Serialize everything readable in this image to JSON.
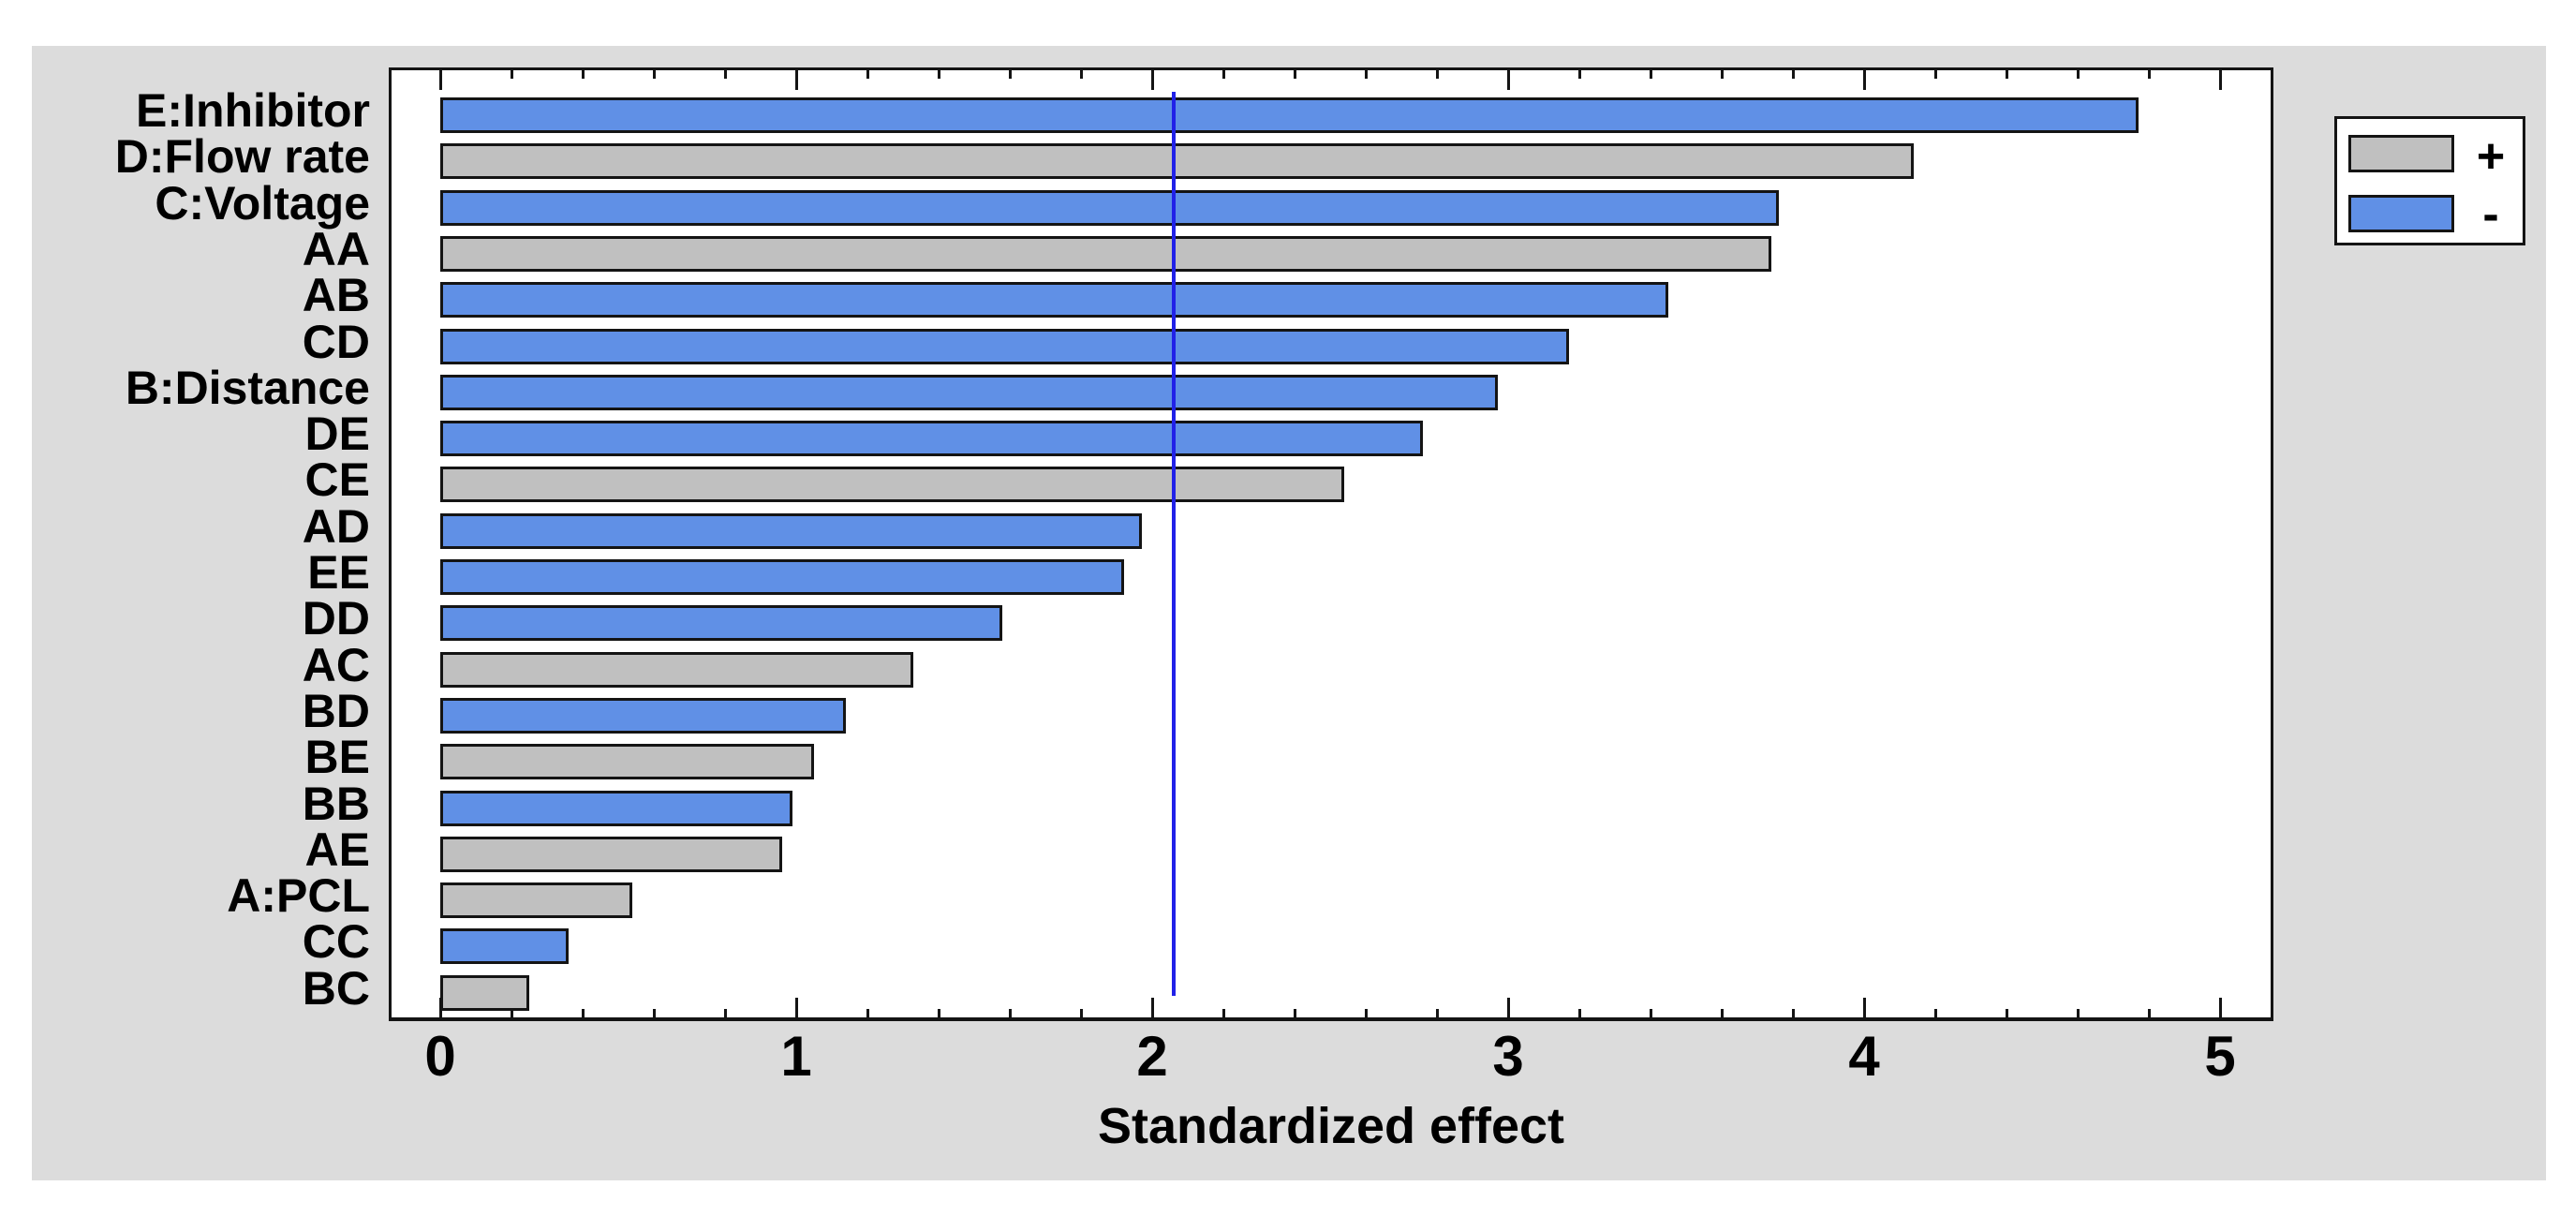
{
  "chart_data": {
    "type": "bar",
    "orientation": "horizontal",
    "title": "",
    "xlabel": "Standardized effect",
    "xlim": [
      0,
      5.3
    ],
    "x_major_ticks": [
      "0",
      "1",
      "2",
      "3",
      "4",
      "5"
    ],
    "x_minor_step": 0.2,
    "grid": false,
    "reference_line": 2.06,
    "categories": [
      "E:Inhibitor",
      "D:Flow rate",
      "C:Voltage",
      "AA",
      "AB",
      "CD",
      "B:Distance",
      "DE",
      "CE",
      "AD",
      "EE",
      "DD",
      "AC",
      "BD",
      "BE",
      "BB",
      "AE",
      "A:PCL",
      "CC",
      "BC"
    ],
    "values": [
      4.77,
      4.14,
      3.76,
      3.74,
      3.45,
      3.17,
      2.97,
      2.76,
      2.54,
      1.97,
      1.92,
      1.58,
      1.33,
      1.14,
      1.05,
      0.99,
      0.96,
      0.54,
      0.36,
      0.25
    ],
    "signs": [
      "-",
      "+",
      "-",
      "+",
      "-",
      "-",
      "-",
      "-",
      "+",
      "-",
      "-",
      "-",
      "+",
      "-",
      "+",
      "-",
      "+",
      "+",
      "-",
      "+"
    ],
    "legend": [
      {
        "label": "+",
        "meaning": "positive effect",
        "color": "#c0c0c0"
      },
      {
        "label": "-",
        "meaning": "negative effect",
        "color": "#6090e6"
      }
    ],
    "colors": {
      "plus_bar": "#c0c0c0",
      "minus_bar": "#6090e6",
      "reference_line": "#2121e8",
      "canvas_background": "#dcdcdc",
      "plot_background": "#ffffff",
      "text": "#000000"
    },
    "legend_position": "top-right"
  }
}
